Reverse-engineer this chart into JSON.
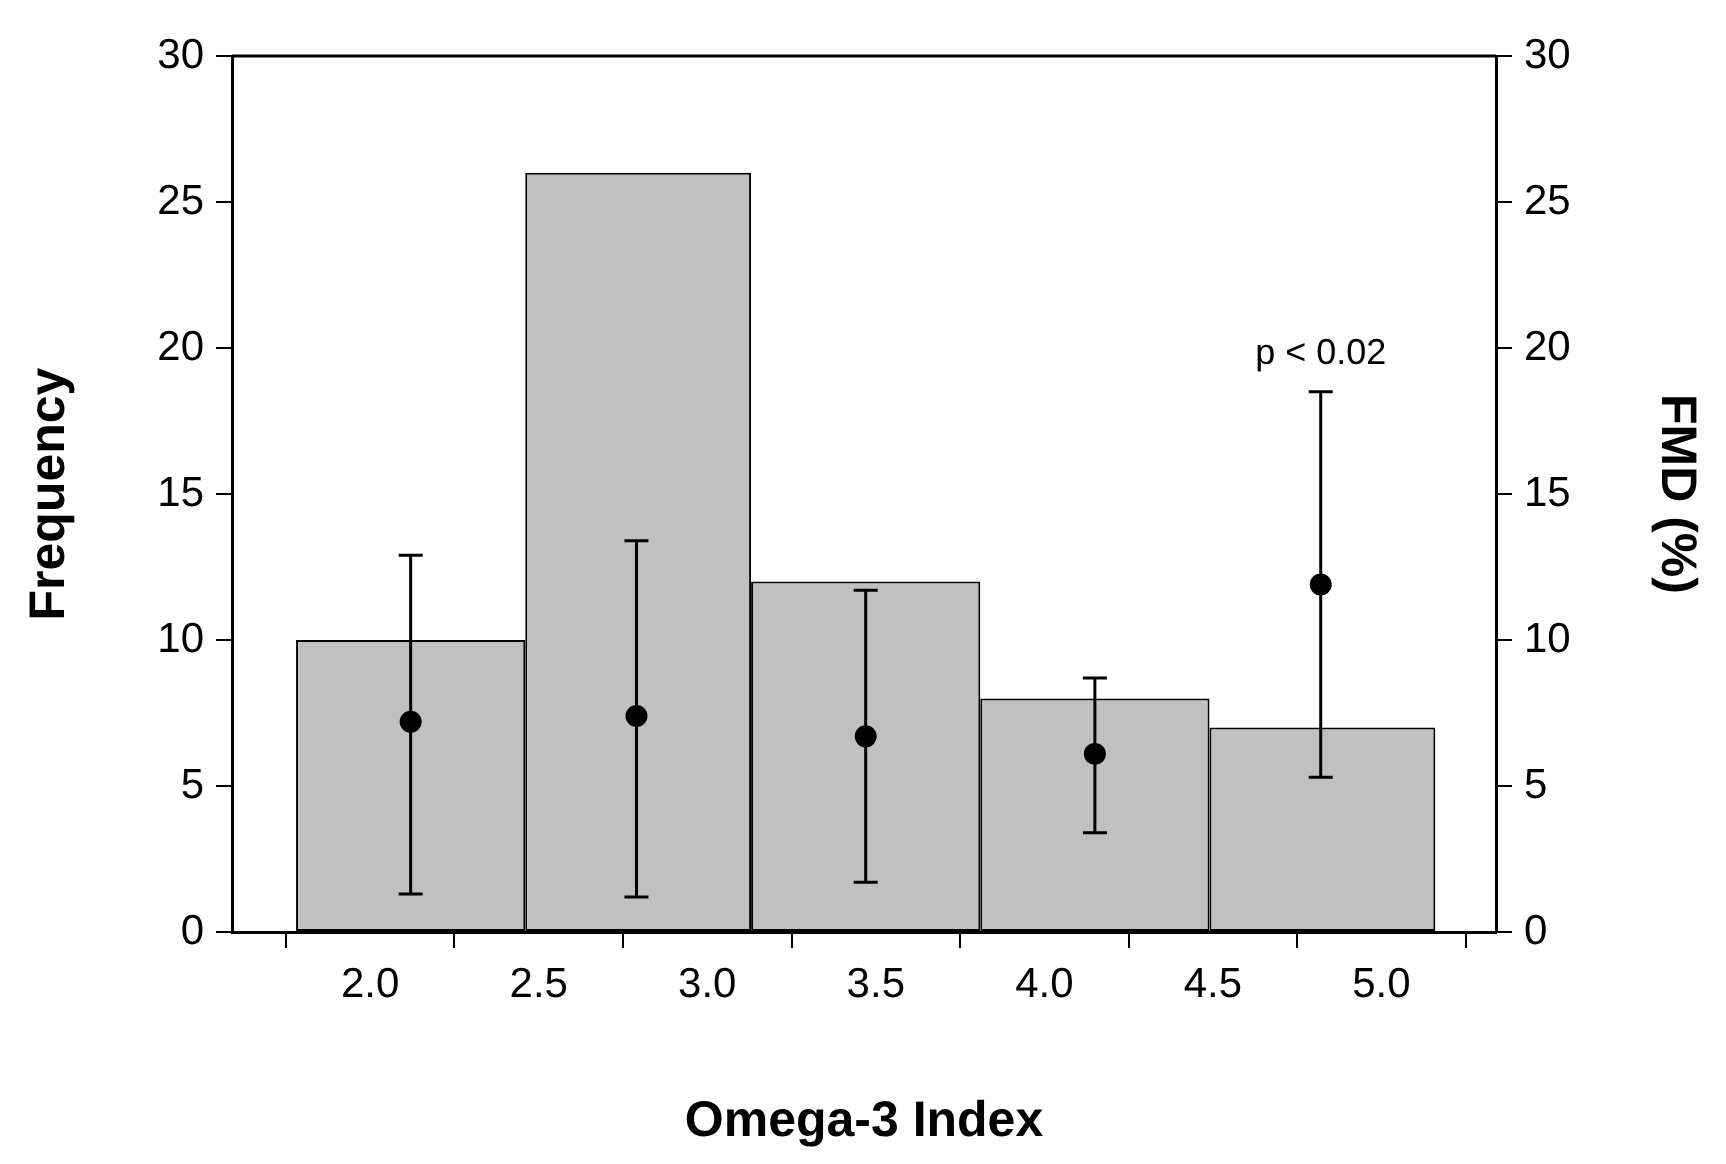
{
  "chart_data": {
    "type": "histogram",
    "xlabel": "Omega-3 Index",
    "ylabel": "Frequency",
    "y2label": "FMD (%)",
    "series": [
      {
        "bins": [
          1.78,
          2.46,
          3.13,
          3.81,
          4.49,
          5.16
        ],
        "values": [
          10,
          26,
          12,
          8,
          7
        ],
        "color": "#c0c0c0"
      },
      {
        "type": "scatter",
        "axis": "y2",
        "x": [
          2.12,
          2.79,
          3.47,
          4.15,
          4.82
        ],
        "values": [
          7.2,
          7.4,
          6.7,
          6.1,
          11.9
        ],
        "errors": [
          [
            1.3,
            12.9
          ],
          [
            1.2,
            13.4
          ],
          [
            1.7,
            11.7
          ],
          [
            3.4,
            8.7
          ],
          [
            5.3,
            18.5
          ]
        ],
        "color": "#000000",
        "marker": "circle"
      }
    ],
    "xlim": [
      1.59,
      5.34
    ],
    "xticks": [
      {
        "value": 2,
        "label": "2.0"
      },
      {
        "value": 2.5,
        "label": "2.5"
      },
      {
        "value": 3,
        "label": "3.0"
      },
      {
        "value": 3.5,
        "label": "3.5"
      },
      {
        "value": 4,
        "label": "4.0"
      },
      {
        "value": 4.5,
        "label": "4.5"
      },
      {
        "value": 5,
        "label": "5.0"
      }
    ],
    "ylim": [
      0,
      30
    ],
    "yticks": [
      0,
      5,
      10,
      15,
      20,
      25,
      30
    ],
    "y2lim": [
      0,
      30
    ],
    "y2ticks": [
      0,
      5,
      10,
      15,
      20,
      25,
      30
    ],
    "annotations": [
      {
        "text": "p < 0.02",
        "x": 4.82,
        "y": 18.5
      }
    ],
    "grid": false,
    "legend": false
  }
}
